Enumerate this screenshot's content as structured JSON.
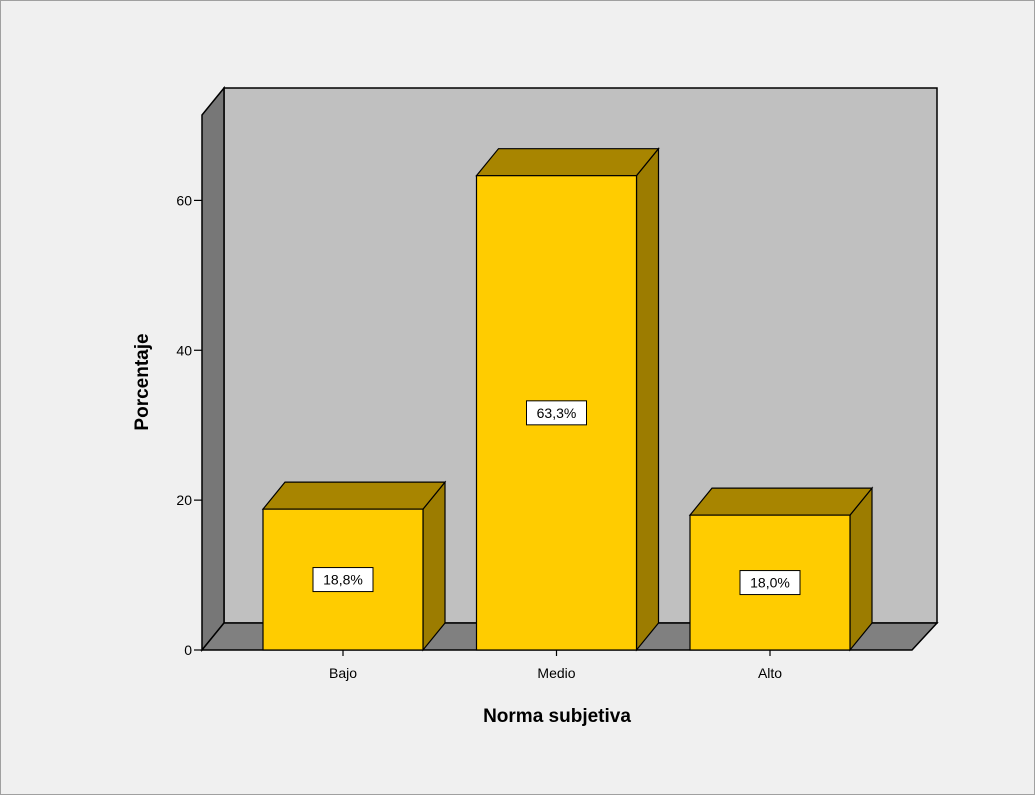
{
  "chart_data": {
    "type": "bar",
    "style": "3d",
    "categories": [
      "Bajo",
      "Medio",
      "Alto"
    ],
    "values": [
      18.8,
      63.3,
      18.0
    ],
    "data_labels": [
      "18,8%",
      "63,3%",
      "18,0%"
    ],
    "xlabel": "Norma subjetiva",
    "ylabel": "Porcentaje",
    "ylim": [
      0,
      75
    ],
    "yticks": [
      0,
      20,
      40,
      60
    ],
    "grid": false,
    "legend": "none"
  },
  "colors": {
    "outer_background": "#f0f0f0",
    "plot_back_wall": "#c0c0c0",
    "plot_side_wall": "#777777",
    "plot_floor": "#808080",
    "bar_front": "#ffcc00",
    "bar_top": "#a88500",
    "bar_side": "#9c7c00",
    "outline": "#000000",
    "label_box": "#ffffff"
  }
}
